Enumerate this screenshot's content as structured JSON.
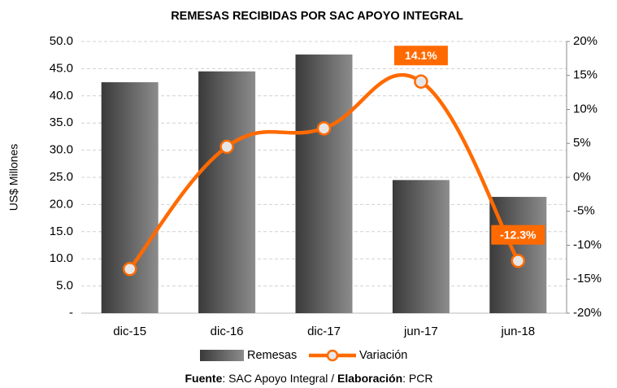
{
  "chart_data": {
    "type": "bar-line",
    "title": "REMESAS RECIBIDAS POR SAC APOYO INTEGRAL",
    "y_label": "US$ Millones",
    "categories": [
      "dic-15",
      "dic-16",
      "dic-17",
      "jun-17",
      "jun-18"
    ],
    "series": [
      {
        "name": "Remesas",
        "type": "bar",
        "color": "#5a5a5a",
        "values": [
          42.5,
          44.5,
          47.6,
          24.5,
          21.4
        ]
      },
      {
        "name": "Variación",
        "type": "line",
        "axis": "y2",
        "color": "#ff6a00",
        "values": [
          -13.5,
          4.5,
          7.2,
          14.1,
          -12.3
        ],
        "value_labels": [
          null,
          null,
          null,
          "14.1%",
          "-12.3%"
        ]
      }
    ],
    "ylim": [
      0,
      50
    ],
    "yticks": [
      {
        "value": 0,
        "label": "-"
      },
      {
        "value": 5,
        "label": "5.0"
      },
      {
        "value": 10,
        "label": "10.0"
      },
      {
        "value": 15,
        "label": "15.0"
      },
      {
        "value": 20,
        "label": "20.0"
      },
      {
        "value": 25,
        "label": "25.0"
      },
      {
        "value": 30,
        "label": "30.0"
      },
      {
        "value": 35,
        "label": "35.0"
      },
      {
        "value": 40,
        "label": "40.0"
      },
      {
        "value": 45,
        "label": "45.0"
      },
      {
        "value": 50,
        "label": "50.0"
      }
    ],
    "y2lim": [
      -20,
      20
    ],
    "y2ticks": [
      {
        "value": -20,
        "label": "-20%"
      },
      {
        "value": -15,
        "label": "-15%"
      },
      {
        "value": -10,
        "label": "-10%"
      },
      {
        "value": -5,
        "label": "-5%"
      },
      {
        "value": 0,
        "label": "0%"
      },
      {
        "value": 5,
        "label": "5%"
      },
      {
        "value": 10,
        "label": "10%"
      },
      {
        "value": 15,
        "label": "15%"
      },
      {
        "value": 20,
        "label": "20%"
      }
    ],
    "grid": true,
    "legend": "bottom",
    "footnote": [
      {
        "text": "Fuente",
        "bold": true
      },
      {
        "text": ": SAC Apoyo Integral / ",
        "bold": false
      },
      {
        "text": "Elaboración",
        "bold": true
      },
      {
        "text": ": PCR",
        "bold": false
      }
    ]
  }
}
